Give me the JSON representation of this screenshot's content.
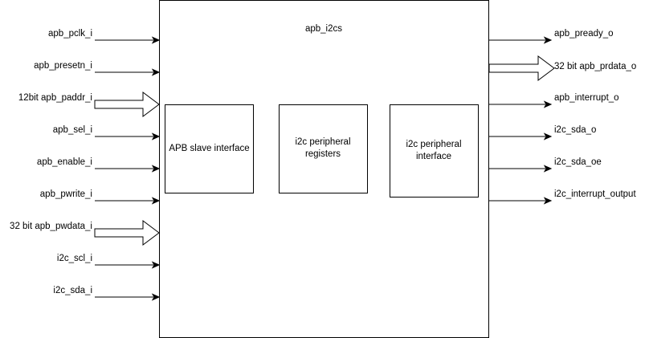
{
  "diagram": {
    "module_name": "apb_i2cs",
    "blocks": {
      "apb_slave": "APB slave interface",
      "registers": "i2c peripheral registers",
      "interface": "i2c peripheral interface"
    },
    "inputs": [
      {
        "label": "apb_pclk_i",
        "bus": false
      },
      {
        "label": "apb_presetn_i",
        "bus": false
      },
      {
        "label": "12bit apb_paddr_i",
        "bus": true
      },
      {
        "label": "apb_sel_i",
        "bus": false
      },
      {
        "label": "apb_enable_i",
        "bus": false
      },
      {
        "label": "apb_pwrite_i",
        "bus": false
      },
      {
        "label": "32 bit apb_pwdata_i",
        "bus": true
      },
      {
        "label": "i2c_scl_i",
        "bus": false
      },
      {
        "label": "i2c_sda_i",
        "bus": false
      }
    ],
    "outputs": [
      {
        "label": "apb_pready_o",
        "bus": false
      },
      {
        "label": "32 bit apb_prdata_o",
        "bus": true
      },
      {
        "label": "apb_interrupt_o",
        "bus": false
      },
      {
        "label": "i2c_sda_o",
        "bus": false
      },
      {
        "label": "i2c_sda_oe",
        "bus": false
      },
      {
        "label": "i2c_interrupt_output",
        "bus": false
      }
    ],
    "colors": {
      "stroke": "#000000",
      "fill": "#ffffff"
    }
  }
}
